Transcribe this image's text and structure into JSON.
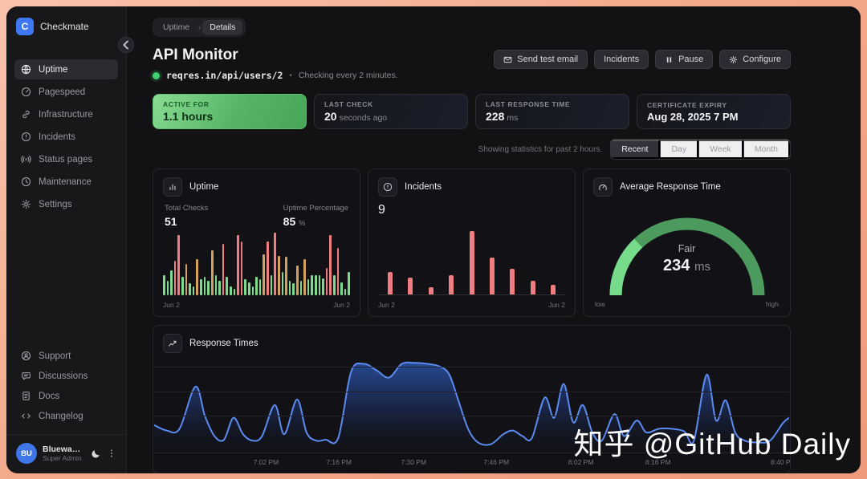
{
  "sidebar": {
    "brand": {
      "name": "Checkmate",
      "logo_letter": "C"
    },
    "items": [
      {
        "label": "Uptime",
        "icon": "globe-icon",
        "active": true
      },
      {
        "label": "Pagespeed",
        "icon": "speedometer-icon",
        "active": false
      },
      {
        "label": "Infrastructure",
        "icon": "link-icon",
        "active": false
      },
      {
        "label": "Incidents",
        "icon": "alert-circle-icon",
        "active": false
      },
      {
        "label": "Status pages",
        "icon": "broadcast-icon",
        "active": false
      },
      {
        "label": "Maintenance",
        "icon": "clock-icon",
        "active": false
      },
      {
        "label": "Settings",
        "icon": "gear-icon",
        "active": false
      }
    ],
    "footer_items": [
      {
        "label": "Support",
        "icon": "support-icon"
      },
      {
        "label": "Discussions",
        "icon": "chat-icon"
      },
      {
        "label": "Docs",
        "icon": "document-icon"
      },
      {
        "label": "Changelog",
        "icon": "code-icon"
      }
    ],
    "user": {
      "initials": "BU",
      "name": "Bluewave U...",
      "role": "Super Admin"
    }
  },
  "breadcrumb": {
    "items": [
      "Uptime",
      "Details"
    ]
  },
  "header": {
    "title": "API Monitor",
    "url": "reqres.in/api/users/2",
    "separator": "•",
    "checking_caption": "Checking every 2 minutes.",
    "buttons": [
      {
        "label": "Send test email",
        "icon": "mail-icon"
      },
      {
        "label": "Incidents",
        "icon": null
      },
      {
        "label": "Pause",
        "icon": "pause-icon"
      },
      {
        "label": "Configure",
        "icon": "gear-icon"
      }
    ]
  },
  "stats": [
    {
      "label": "ACTIVE FOR",
      "value": "1.1 hours",
      "unit": "",
      "variant": "active"
    },
    {
      "label": "LAST CHECK",
      "value": "20",
      "unit": "seconds ago",
      "variant": "default"
    },
    {
      "label": "LAST RESPONSE TIME",
      "value": "228",
      "unit": "ms",
      "variant": "default"
    },
    {
      "label": "CERTIFICATE EXPIRY",
      "value": "Aug 28, 2025 7 PM",
      "unit": "",
      "variant": "default"
    }
  ],
  "filter": {
    "caption": "Showing statistics for past 2 hours.",
    "options": [
      "Recent",
      "Day",
      "Week",
      "Month"
    ],
    "selected": "Recent"
  },
  "chart_data": [
    {
      "id": "uptime-checks",
      "type": "bar",
      "title": "Uptime",
      "stats": {
        "total_checks_label": "Total Checks",
        "total_checks": "51",
        "uptime_pct_label": "Uptime Percentage",
        "uptime_pct": "85",
        "uptime_pct_unit": "%"
      },
      "x_start": "Jun 2",
      "x_end": "Jun 2",
      "colors": {
        "g": "#7fd98e",
        "r": "#ef7e80",
        "o": "#d2a15c"
      },
      "bars": [
        [
          30,
          "g"
        ],
        [
          22,
          "g"
        ],
        [
          38,
          "g"
        ],
        [
          52,
          "r"
        ],
        [
          92,
          "r"
        ],
        [
          28,
          "g"
        ],
        [
          48,
          "o"
        ],
        [
          18,
          "g"
        ],
        [
          14,
          "g"
        ],
        [
          55,
          "o"
        ],
        [
          25,
          "g"
        ],
        [
          28,
          "g"
        ],
        [
          22,
          "g"
        ],
        [
          68,
          "o"
        ],
        [
          30,
          "g"
        ],
        [
          22,
          "g"
        ],
        [
          78,
          "r"
        ],
        [
          28,
          "g"
        ],
        [
          14,
          "g"
        ],
        [
          10,
          "g"
        ],
        [
          92,
          "r"
        ],
        [
          82,
          "r"
        ],
        [
          24,
          "g"
        ],
        [
          20,
          "g"
        ],
        [
          14,
          "g"
        ],
        [
          28,
          "g"
        ],
        [
          24,
          "g"
        ],
        [
          62,
          "o"
        ],
        [
          82,
          "r"
        ],
        [
          30,
          "g"
        ],
        [
          95,
          "r"
        ],
        [
          60,
          "o"
        ],
        [
          35,
          "g"
        ],
        [
          58,
          "o"
        ],
        [
          22,
          "g"
        ],
        [
          18,
          "g"
        ],
        [
          45,
          "o"
        ],
        [
          22,
          "g"
        ],
        [
          55,
          "o"
        ],
        [
          24,
          "g"
        ],
        [
          30,
          "g"
        ],
        [
          30,
          "g"
        ],
        [
          30,
          "g"
        ],
        [
          26,
          "g"
        ],
        [
          42,
          "r"
        ],
        [
          92,
          "r"
        ],
        [
          30,
          "g"
        ],
        [
          72,
          "r"
        ],
        [
          20,
          "g"
        ],
        [
          10,
          "g"
        ],
        [
          35,
          "g"
        ]
      ]
    },
    {
      "id": "incidents",
      "type": "bar",
      "title": "Incidents",
      "count": "9",
      "x_start": "Jun 2",
      "x_end": "Jun 2",
      "color": "#ef7e80",
      "values": [
        26,
        20,
        8,
        22,
        74,
        43,
        30,
        16,
        11
      ]
    },
    {
      "id": "avg-response-gauge",
      "type": "gauge",
      "title": "Average Response Time",
      "status": "Fair",
      "value": "234",
      "unit": "ms",
      "fraction": 0.26,
      "min_label": "low",
      "max_label": "high",
      "colors": {
        "track": "#4d9a5f",
        "fill": "#76db8b"
      }
    },
    {
      "id": "response-times",
      "type": "area",
      "title": "Response Times",
      "line_color": "#5c8bf0",
      "x_ticks": [
        {
          "label": "7:02 PM",
          "pos": 0.167
        },
        {
          "label": "7:16 PM",
          "pos": 0.285
        },
        {
          "label": "7:30 PM",
          "pos": 0.406
        },
        {
          "label": "7:46 PM",
          "pos": 0.54
        },
        {
          "label": "8:02 PM",
          "pos": 0.677
        },
        {
          "label": "8:16 PM",
          "pos": 0.802
        },
        {
          "label": "8:40 PM",
          "pos": 1.005
        }
      ],
      "points": [
        [
          0,
          30
        ],
        [
          2,
          24
        ],
        [
          4,
          26
        ],
        [
          6.5,
          72
        ],
        [
          8,
          40
        ],
        [
          9.5,
          18
        ],
        [
          11,
          14
        ],
        [
          12.5,
          38
        ],
        [
          14,
          20
        ],
        [
          15.5,
          13
        ],
        [
          17,
          18
        ],
        [
          19,
          52
        ],
        [
          20.5,
          20
        ],
        [
          22.5,
          58
        ],
        [
          24,
          22
        ],
        [
          25.5,
          13
        ],
        [
          27,
          14
        ],
        [
          29,
          16
        ],
        [
          31,
          88
        ],
        [
          33,
          97
        ],
        [
          35,
          90
        ],
        [
          37,
          82
        ],
        [
          39,
          97
        ],
        [
          41,
          98
        ],
        [
          43,
          97
        ],
        [
          45,
          94
        ],
        [
          46.5,
          85
        ],
        [
          48,
          55
        ],
        [
          49.5,
          25
        ],
        [
          51,
          11
        ],
        [
          53,
          9
        ],
        [
          55,
          20
        ],
        [
          56.5,
          24
        ],
        [
          58,
          18
        ],
        [
          59.5,
          16
        ],
        [
          61.5,
          60
        ],
        [
          63,
          38
        ],
        [
          64.5,
          75
        ],
        [
          66,
          33
        ],
        [
          67.5,
          52
        ],
        [
          69,
          22
        ],
        [
          70.5,
          13
        ],
        [
          72.5,
          42
        ],
        [
          74,
          18
        ],
        [
          76,
          35
        ],
        [
          77.5,
          22
        ],
        [
          79.5,
          26
        ],
        [
          81.5,
          26
        ],
        [
          83.5,
          23
        ],
        [
          85,
          13
        ],
        [
          87,
          85
        ],
        [
          88.5,
          35
        ],
        [
          90,
          57
        ],
        [
          91.5,
          22
        ],
        [
          93,
          13
        ],
        [
          95,
          11
        ],
        [
          97,
          13
        ],
        [
          99,
          32
        ],
        [
          100,
          38
        ]
      ]
    }
  ],
  "watermark": "知乎 @GitHub Daily"
}
